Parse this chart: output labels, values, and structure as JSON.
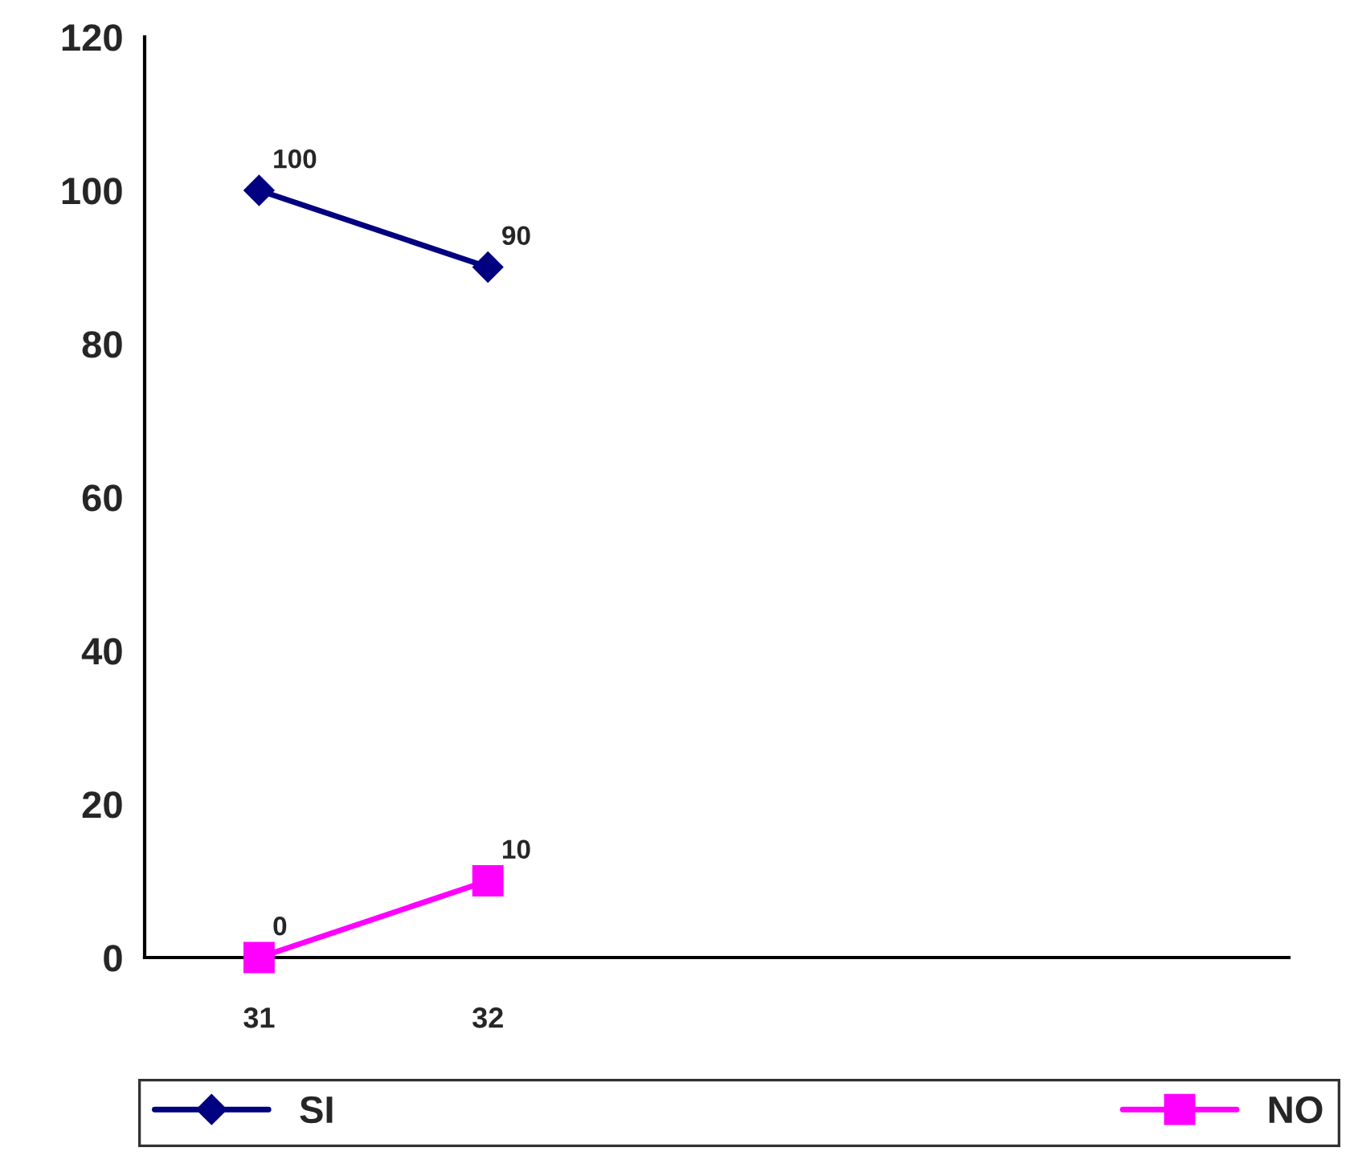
{
  "chart_data": {
    "type": "line",
    "categories": [
      "31",
      "32",
      null,
      null,
      null
    ],
    "series": [
      {
        "name": "SI",
        "color": "#000080",
        "marker": "diamond",
        "values": [
          100,
          90,
          null,
          null,
          null
        ]
      },
      {
        "name": "NO",
        "color": "#ff00ff",
        "marker": "square",
        "values": [
          0,
          10,
          null,
          null,
          null
        ]
      }
    ],
    "ylim": [
      0,
      120
    ],
    "yticks": [
      0,
      20,
      40,
      60,
      80,
      100,
      120
    ],
    "grid": false,
    "legend": "bottom",
    "data_labels": true,
    "line_style": "solid"
  }
}
